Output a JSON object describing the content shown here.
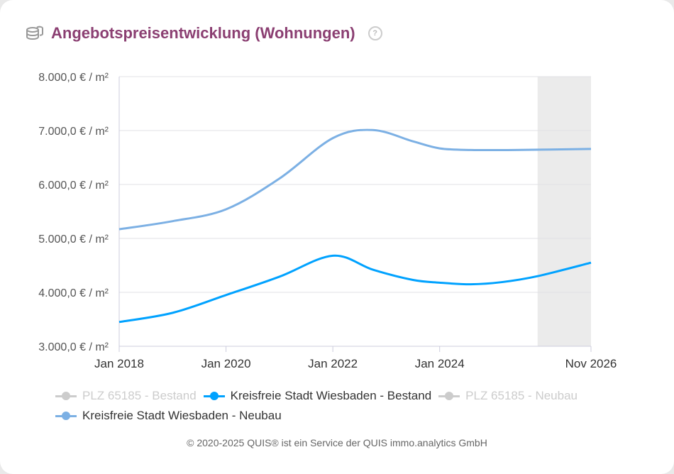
{
  "header": {
    "title": "Angebotspreisentwicklung (Wohnungen)",
    "icon": "coins-icon",
    "help_icon": "question-circle-icon",
    "help_symbol": "?"
  },
  "chart_data": {
    "type": "line",
    "title": "Angebotspreisentwicklung (Wohnungen)",
    "xlabel": "",
    "ylabel": "",
    "x_ticks": [
      "Jan 2018",
      "Jan 2020",
      "Jan 2022",
      "Jan 2024",
      "Nov 2026"
    ],
    "y_ticks": [
      "3.000,0 € / m²",
      "4.000,0 € / m²",
      "5.000,0 € / m²",
      "6.000,0 € / m²",
      "7.000,0 € / m²",
      "8.000,0 € / m²"
    ],
    "xlim": [
      "2018-01",
      "2026-11"
    ],
    "ylim": [
      3000,
      8000
    ],
    "grid": true,
    "shaded_range": [
      "2025-11",
      "2026-11"
    ],
    "legend_placement": "bottom",
    "series": [
      {
        "name": "PLZ 65185 - Bestand",
        "color": "#cccccc",
        "visible": false,
        "x": [],
        "values": []
      },
      {
        "name": "Kreisfreie Stadt Wiesbaden - Bestand",
        "color": "#00a2ff",
        "visible": true,
        "x": [
          "2018-01",
          "2019-01",
          "2020-01",
          "2021-01",
          "2022-01",
          "2022-10",
          "2023-07",
          "2024-01",
          "2024-08",
          "2025-03",
          "2025-11",
          "2026-11"
        ],
        "values": [
          3450,
          3620,
          3950,
          4290,
          4680,
          4420,
          4230,
          4180,
          4150,
          4190,
          4300,
          4550
        ]
      },
      {
        "name": "PLZ 65185 - Neubau",
        "color": "#cccccc",
        "visible": false,
        "x": [],
        "values": []
      },
      {
        "name": "Kreisfreie Stadt Wiesbaden - Neubau",
        "color": "#7cb0e4",
        "visible": true,
        "x": [
          "2018-01",
          "2019-01",
          "2020-01",
          "2021-01",
          "2022-01",
          "2022-10",
          "2023-07",
          "2024-01",
          "2024-08",
          "2025-06",
          "2026-11"
        ],
        "values": [
          5170,
          5320,
          5540,
          6110,
          6860,
          7010,
          6800,
          6670,
          6640,
          6640,
          6660
        ]
      }
    ]
  },
  "footer": "© 2020-2025 QUIS® ist ein Service der QUIS immo.analytics GmbH"
}
